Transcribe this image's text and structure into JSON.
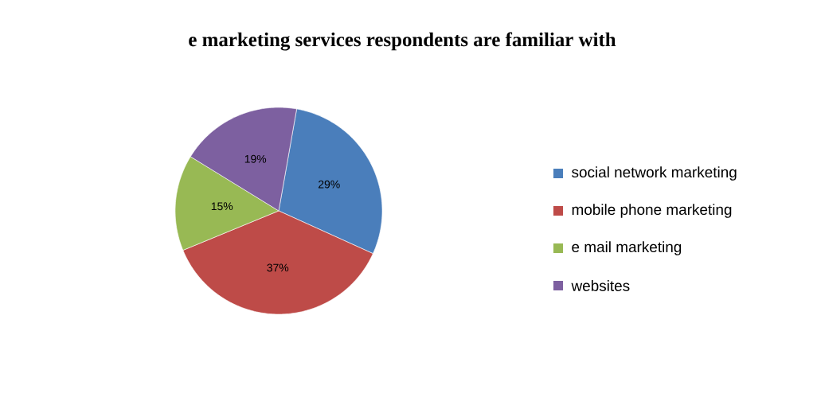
{
  "chart_data": {
    "type": "pie",
    "title": "e marketing services respondents are familiar with",
    "categories": [
      "social network marketing",
      "mobile phone marketing",
      "e mail marketing",
      "websites"
    ],
    "values": [
      29,
      37,
      15,
      19
    ],
    "colors": [
      "#4a7ebb",
      "#be4b48",
      "#98b954",
      "#7d60a0"
    ],
    "value_labels": [
      "29%",
      "37%",
      "15%",
      "19%"
    ],
    "legend": "right"
  }
}
